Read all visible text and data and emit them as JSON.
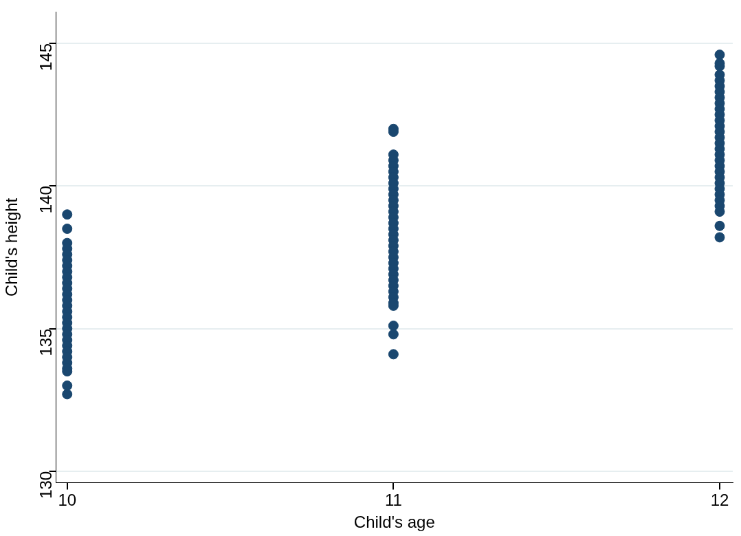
{
  "chart_data": {
    "type": "scatter",
    "xlabel": "Child's age",
    "ylabel": "Child's height",
    "color": "#1a476f",
    "marker": "circle",
    "grid": "y",
    "legend": false,
    "xlim": [
      9.966,
      12.04
    ],
    "xticks": [
      10,
      11,
      12
    ],
    "ylim": [
      129.6,
      146.1
    ],
    "yticks": [
      130,
      135,
      140,
      145
    ],
    "x": [
      10,
      10,
      10,
      10,
      10,
      10,
      10,
      10,
      10,
      10,
      10,
      10,
      10,
      10,
      10,
      10,
      10,
      10,
      10,
      10,
      10,
      10,
      10,
      10,
      10,
      10,
      10,
      10,
      11,
      11,
      11,
      11,
      11,
      11,
      11,
      11,
      11,
      11,
      11,
      11,
      11,
      11,
      11,
      11,
      11,
      11,
      11,
      11,
      11,
      11,
      11,
      11,
      11,
      11,
      11,
      11,
      11,
      11,
      11,
      11,
      11,
      12,
      12,
      12,
      12,
      12,
      12,
      12,
      12,
      12,
      12,
      12,
      12,
      12,
      12,
      12,
      12,
      12,
      12,
      12,
      12,
      12,
      12,
      12,
      12,
      12,
      12,
      12,
      12,
      12,
      12
    ],
    "values": [
      139.0,
      138.5,
      138.0,
      137.8,
      137.6,
      137.4,
      137.2,
      137.0,
      136.8,
      136.6,
      136.4,
      136.2,
      136.0,
      135.8,
      135.6,
      135.4,
      135.2,
      135.0,
      134.8,
      134.6,
      134.4,
      134.2,
      134.0,
      133.8,
      133.6,
      133.5,
      133.0,
      132.7,
      142.0,
      141.9,
      141.1,
      140.9,
      140.7,
      140.5,
      140.3,
      140.1,
      139.9,
      139.7,
      139.5,
      139.3,
      139.1,
      138.9,
      138.7,
      138.5,
      138.3,
      138.1,
      137.9,
      137.7,
      137.5,
      137.3,
      137.1,
      136.9,
      136.7,
      136.5,
      136.3,
      136.1,
      135.9,
      135.8,
      135.1,
      134.8,
      134.1,
      144.6,
      144.3,
      144.2,
      143.9,
      143.7,
      143.5,
      143.3,
      143.1,
      142.9,
      142.7,
      142.5,
      142.3,
      142.1,
      141.9,
      141.7,
      141.5,
      141.3,
      141.1,
      140.9,
      140.7,
      140.5,
      140.3,
      140.1,
      139.9,
      139.7,
      139.5,
      139.3,
      139.1,
      138.6,
      138.2
    ]
  }
}
